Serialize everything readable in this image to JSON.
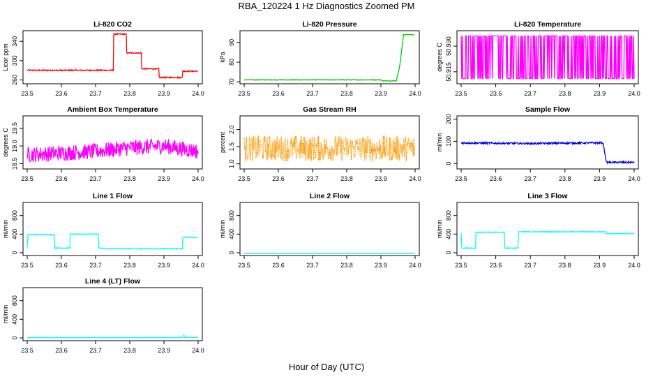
{
  "title": "RBA_120224  1 Hz Diagnostics Zoomed PM",
  "xlabel": "Hour of Day (UTC)",
  "chart_data": [
    {
      "type": "line",
      "title": "Li-820 CO2",
      "ylabel": "Licor ppm",
      "color": "#ff0000",
      "xlim": [
        23.5,
        24.0
      ],
      "ylim": [
        252,
        362
      ],
      "xticks": [
        "23.5",
        "23.6",
        "23.7",
        "23.8",
        "23.9",
        "24.0"
      ],
      "yticks": [
        "260",
        "300",
        "340"
      ],
      "series": [
        {
          "segments": [
            [
              23.5,
              280
            ],
            [
              23.752,
              280
            ],
            [
              23.752,
              355
            ],
            [
              23.79,
              355
            ],
            [
              23.79,
              316
            ],
            [
              23.835,
              316
            ],
            [
              23.835,
              283
            ],
            [
              23.885,
              283
            ],
            [
              23.885,
              265
            ],
            [
              23.955,
              265
            ],
            [
              23.955,
              278
            ],
            [
              23.999,
              278
            ]
          ],
          "noise": 1.2
        }
      ]
    },
    {
      "type": "line",
      "title": "Li-820 Pressure",
      "ylabel": "kPa",
      "color": "#00cc00",
      "xlim": [
        23.5,
        24.0
      ],
      "ylim": [
        69,
        96
      ],
      "xticks": [
        "23.5",
        "23.6",
        "23.7",
        "23.8",
        "23.9",
        "24.0"
      ],
      "yticks": [
        "70",
        "80",
        "90"
      ],
      "series": [
        {
          "segments": [
            [
              23.5,
              71
            ],
            [
              23.9,
              71
            ],
            [
              23.905,
              70.5
            ],
            [
              23.945,
              70.5
            ],
            [
              23.955,
              78
            ],
            [
              23.962,
              88
            ],
            [
              23.966,
              94
            ],
            [
              23.998,
              94
            ]
          ],
          "noise": 0.15
        }
      ]
    },
    {
      "type": "line",
      "title": "Li-820 Temperature",
      "ylabel": "degrees C",
      "color": "#ff00ff",
      "xlim": [
        23.5,
        24.0
      ],
      "ylim": [
        50.908,
        50.939
      ],
      "xticks": [
        "23.5",
        "23.6",
        "23.7",
        "23.8",
        "23.9",
        "24.0"
      ],
      "yticks": [
        "50.915",
        "50.930"
      ],
      "series": [
        {
          "toggle": true,
          "low": 50.911,
          "high": 50.936
        }
      ]
    },
    {
      "type": "line",
      "title": "Ambient Box Temperature",
      "ylabel": "degrees C",
      "color": "#ff00ff",
      "xlim": [
        23.5,
        24.0
      ],
      "ylim": [
        18.35,
        19.85
      ],
      "xticks": [
        "23.5",
        "23.6",
        "23.7",
        "23.8",
        "23.9",
        "24.0"
      ],
      "yticks": [
        "18.5",
        "19.0",
        "19.5"
      ],
      "series": [
        {
          "segments": [
            [
              23.5,
              18.75
            ],
            [
              23.7,
              18.85
            ],
            [
              23.8,
              18.95
            ],
            [
              23.9,
              19.0
            ],
            [
              24.0,
              18.85
            ]
          ],
          "noise": 0.22
        }
      ]
    },
    {
      "type": "line",
      "title": "Gas Stream RH",
      "ylabel": "percent",
      "color": "#ff9900",
      "dotted": true,
      "xlim": [
        23.5,
        24.0
      ],
      "ylim": [
        0.85,
        2.4
      ],
      "xticks": [
        "23.5",
        "23.6",
        "23.7",
        "23.8",
        "23.9",
        "24.0"
      ],
      "yticks": [
        "1.0",
        "1.5",
        "2.0"
      ],
      "series": [
        {
          "segments": [
            [
              23.5,
              1.45
            ],
            [
              24.0,
              1.45
            ]
          ],
          "noise": 0.38
        }
      ]
    },
    {
      "type": "line",
      "title": "Sample Flow",
      "ylabel": "ml/min",
      "color": "#0000ee",
      "xlim": [
        23.5,
        24.0
      ],
      "ylim": [
        -25,
        215
      ],
      "xticks": [
        "23.5",
        "23.6",
        "23.7",
        "23.8",
        "23.9",
        "24.0"
      ],
      "yticks": [
        "0",
        "100",
        "200"
      ],
      "series": [
        {
          "segments": [
            [
              23.5,
              93
            ],
            [
              23.7,
              90
            ],
            [
              23.8,
              92
            ],
            [
              23.91,
              93
            ],
            [
              23.92,
              5
            ],
            [
              24.0,
              5
            ]
          ],
          "noise": 4
        }
      ]
    },
    {
      "type": "line",
      "title": "Line 1 Flow",
      "ylabel": "ml/min",
      "color": "#00ffff",
      "xlim": [
        23.5,
        24.0
      ],
      "ylim": [
        -60,
        1080
      ],
      "xticks": [
        "23.5",
        "23.6",
        "23.7",
        "23.8",
        "23.9",
        "24.0"
      ],
      "yticks": [
        "0",
        "400",
        "800"
      ],
      "series": [
        {
          "segments": [
            [
              23.5,
              110
            ],
            [
              23.502,
              390
            ],
            [
              23.58,
              390
            ],
            [
              23.58,
              100
            ],
            [
              23.625,
              100
            ],
            [
              23.625,
              400
            ],
            [
              23.708,
              400
            ],
            [
              23.708,
              100
            ],
            [
              23.755,
              85
            ],
            [
              23.955,
              85
            ],
            [
              23.955,
              330
            ],
            [
              23.999,
              330
            ]
          ],
          "noise": 8
        }
      ]
    },
    {
      "type": "line",
      "title": "Line 2 Flow",
      "ylabel": "ml/min",
      "color": "#00ffff",
      "xlim": [
        23.5,
        24.0
      ],
      "ylim": [
        -60,
        1080
      ],
      "xticks": [
        "23.5",
        "23.6",
        "23.7",
        "23.8",
        "23.9",
        "24.0"
      ],
      "yticks": [
        "0",
        "400",
        "800"
      ],
      "series": [
        {
          "segments": [
            [
              23.5,
              -20
            ],
            [
              24.0,
              -20
            ]
          ],
          "noise": 0
        }
      ]
    },
    {
      "type": "line",
      "title": "Line 3 Flow",
      "ylabel": "ml/min",
      "color": "#00ffff",
      "xlim": [
        23.5,
        24.0
      ],
      "ylim": [
        -60,
        1080
      ],
      "xticks": [
        "23.5",
        "23.6",
        "23.7",
        "23.8",
        "23.9",
        "24.0"
      ],
      "yticks": [
        "0",
        "400",
        "800"
      ],
      "series": [
        {
          "segments": [
            [
              23.5,
              430
            ],
            [
              23.502,
              100
            ],
            [
              23.542,
              100
            ],
            [
              23.542,
              440
            ],
            [
              23.625,
              440
            ],
            [
              23.625,
              100
            ],
            [
              23.665,
              100
            ],
            [
              23.665,
              450
            ],
            [
              23.92,
              450
            ],
            [
              23.92,
              410
            ],
            [
              24.0,
              410
            ]
          ],
          "noise": 8
        }
      ]
    },
    {
      "type": "line",
      "title": "Line 4 (LT) Flow",
      "ylabel": "ml/min",
      "color": "#00ffff",
      "xlim": [
        23.5,
        24.0
      ],
      "ylim": [
        -60,
        1080
      ],
      "xticks": [
        "23.5",
        "23.6",
        "23.7",
        "23.8",
        "23.9",
        "24.0"
      ],
      "yticks": [
        "0",
        "400",
        "800"
      ],
      "series": [
        {
          "segments": [
            [
              23.5,
              5
            ],
            [
              23.955,
              5
            ],
            [
              23.958,
              70
            ],
            [
              23.962,
              10
            ],
            [
              24.0,
              10
            ]
          ],
          "noise": 4
        }
      ]
    }
  ]
}
